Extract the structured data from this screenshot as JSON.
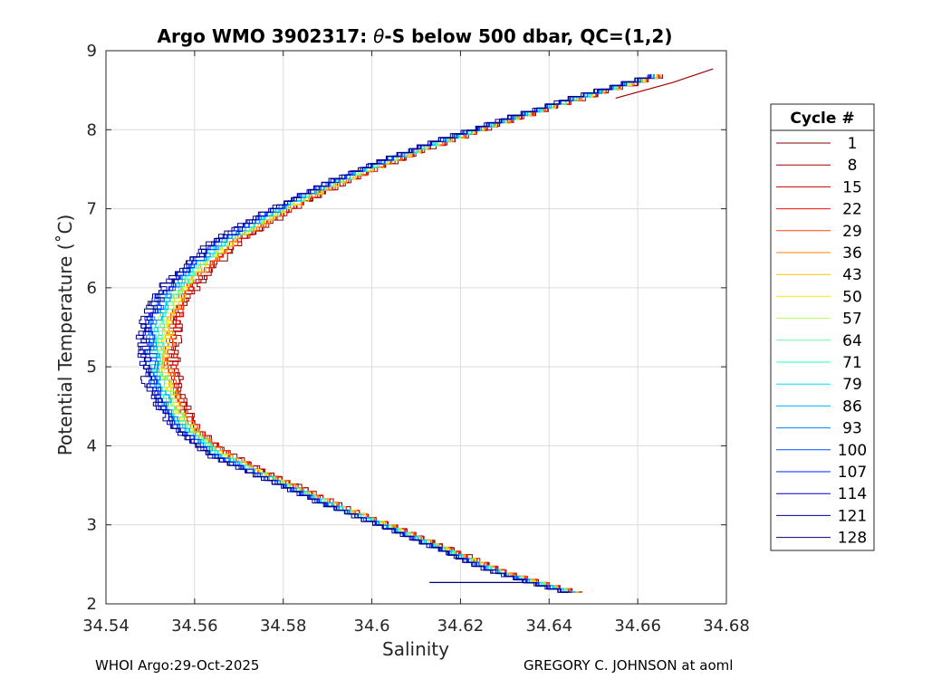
{
  "chart_data": {
    "type": "line",
    "title_prefix": "Argo WMO 3902317: ",
    "title_theta": "θ",
    "title_suffix": "-S below 500 dbar,  QC=(1,2)",
    "xlabel": "Salinity",
    "ylabel": "Potential Temperature (˚C)",
    "xlim": [
      34.54,
      34.68
    ],
    "ylim": [
      2,
      9
    ],
    "xticks": [
      34.54,
      34.56,
      34.58,
      34.6,
      34.62,
      34.64,
      34.66,
      34.68
    ],
    "xtick_labels": [
      "34.54",
      "34.56",
      "34.58",
      "34.6",
      "34.62",
      "34.64",
      "34.66",
      "34.68"
    ],
    "yticks": [
      2,
      3,
      4,
      5,
      6,
      7,
      8,
      9
    ],
    "ytick_labels": [
      "2",
      "3",
      "4",
      "5",
      "6",
      "7",
      "8",
      "9"
    ],
    "grid": true,
    "legend_position": "right, outside",
    "legend_title": "Cycle #",
    "legend": [
      {
        "label": "1",
        "color": "#800000"
      },
      {
        "label": "8",
        "color": "#a00000"
      },
      {
        "label": "15",
        "color": "#c80000"
      },
      {
        "label": "22",
        "color": "#ef1000"
      },
      {
        "label": "29",
        "color": "#ff4000"
      },
      {
        "label": "36",
        "color": "#ff8000"
      },
      {
        "label": "43",
        "color": "#ffbf00"
      },
      {
        "label": "50",
        "color": "#ffef00"
      },
      {
        "label": "57",
        "color": "#afff50"
      },
      {
        "label": "64",
        "color": "#60ff90"
      },
      {
        "label": "71",
        "color": "#20ffd0"
      },
      {
        "label": "79",
        "color": "#00e0ff"
      },
      {
        "label": "86",
        "color": "#00b0ff"
      },
      {
        "label": "93",
        "color": "#0080ff"
      },
      {
        "label": "100",
        "color": "#0050ff"
      },
      {
        "label": "107",
        "color": "#0020ff"
      },
      {
        "label": "114",
        "color": "#0000d0"
      },
      {
        "label": "121",
        "color": "#0000a0"
      },
      {
        "label": "128",
        "color": "#000080"
      }
    ],
    "series_profile": {
      "theta": [
        2.15,
        2.4,
        2.7,
        3.0,
        3.3,
        3.6,
        3.9,
        4.2,
        4.5,
        4.8,
        5.1,
        5.4,
        5.7,
        6.0,
        6.3,
        6.6,
        6.9,
        7.2,
        7.5,
        7.8,
        8.1,
        8.4,
        8.7
      ],
      "salinity": [
        34.646,
        34.63,
        34.617,
        34.604,
        34.59,
        34.578,
        34.566,
        34.559,
        34.555,
        34.553,
        34.552,
        34.552,
        34.553,
        34.556,
        34.561,
        34.567,
        34.576,
        34.586,
        34.598,
        34.612,
        34.628,
        34.645,
        34.664
      ]
    },
    "outliers": [
      {
        "label": "8",
        "note": "high-salinity near-surface excursion",
        "theta": [
          8.4,
          8.6,
          8.77
        ],
        "salinity": [
          34.655,
          34.668,
          34.677
        ]
      },
      {
        "label": "128",
        "note": "horizontal spike at base",
        "theta": [
          2.27,
          2.27
        ],
        "salinity": [
          34.613,
          34.635
        ]
      }
    ]
  },
  "footer": {
    "left": "WHOI Argo:29-Oct-2025",
    "right": "GREGORY C. JOHNSON at aoml"
  }
}
